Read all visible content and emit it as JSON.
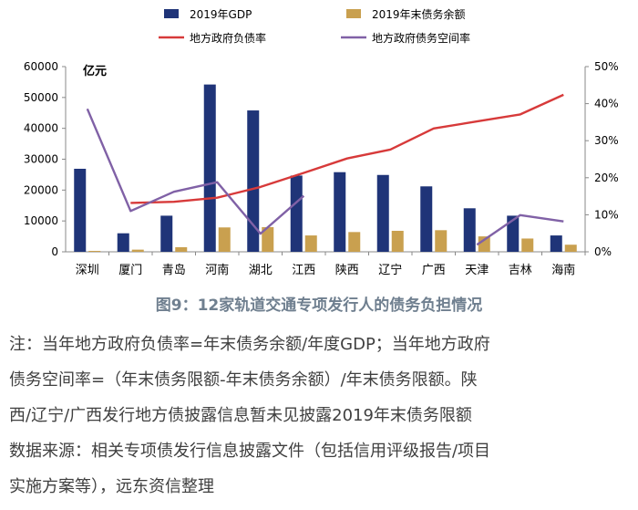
{
  "chart_data": {
    "type": "bar",
    "unit_label": "亿元",
    "categories": [
      "深圳",
      "厦门",
      "青岛",
      "河南",
      "湖北",
      "江西",
      "陕西",
      "辽宁",
      "广西",
      "天津",
      "吉林",
      "海南"
    ],
    "y_left": {
      "ticks": [
        "0",
        "10000",
        "20000",
        "30000",
        "40000",
        "50000",
        "60000"
      ],
      "ylim": [
        0,
        60000
      ]
    },
    "y_right": {
      "ticks": [
        "0%",
        "10%",
        "20%",
        "30%",
        "40%",
        "50%"
      ],
      "ylim": [
        0,
        50
      ]
    },
    "series": [
      {
        "name": "2019年GDP",
        "kind": "bar",
        "axis": "left",
        "color": "#1f3478",
        "values": [
          26900,
          6000,
          11700,
          54200,
          45800,
          24700,
          25800,
          24900,
          21200,
          14100,
          11700,
          5300
        ]
      },
      {
        "name": "2019年末债务余额",
        "kind": "bar",
        "axis": "left",
        "color": "#c9a04f",
        "values": [
          300,
          700,
          1500,
          7900,
          8000,
          5300,
          6400,
          6800,
          7000,
          5000,
          4300,
          2300
        ]
      },
      {
        "name": "地方政府负债率",
        "kind": "line",
        "axis": "right",
        "color": "#d73a3a",
        "values": [
          null,
          13.2,
          13.5,
          14.6,
          17.5,
          21.3,
          25.2,
          27.6,
          33.3,
          35.2,
          37.1,
          42.4
        ]
      },
      {
        "name": "地方政府债务空间率",
        "kind": "line",
        "axis": "right",
        "color": "#8061a6",
        "values": [
          38.6,
          11.0,
          16.2,
          18.8,
          4.9,
          15.1,
          null,
          null,
          null,
          1.9,
          9.9,
          8.2
        ]
      }
    ],
    "legend_placement": "top",
    "grid": false
  },
  "caption": "图9：12家轨道交通专项发行人的债务负担情况",
  "notes": [
    "注：当年地方政府负债率=年末债务余额/年度GDP；当年地方政府",
    "债务空间率=（年末债务限额-年末债务余额）/年末债务限额。陕",
    "西/辽宁/广西发行地方债披露信息暂未见披露2019年末债务限额",
    "数据来源：相关专项债发行信息披露文件（包括信用评级报告/项目",
    "实施方案等），远东资信整理"
  ]
}
